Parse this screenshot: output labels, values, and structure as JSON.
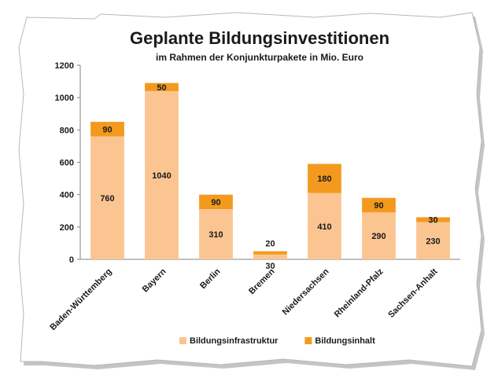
{
  "chart_data": {
    "type": "bar",
    "stacked": true,
    "title": "Geplante Bildungsinvestitionen",
    "subtitle": "im Rahmen der Konjunkturpakete in Mio. Euro",
    "categories": [
      "Baden-Württemberg",
      "Bayern",
      "Berlin",
      "Bremen",
      "Niedersachsen",
      "Rheinland-Pfalz",
      "Sachsen-Anhalt"
    ],
    "series": [
      {
        "name": "Bildungsinfrastruktur",
        "values": [
          760,
          1040,
          310,
          30,
          410,
          290,
          230
        ],
        "color": "#fbc592"
      },
      {
        "name": "Bildungsinhalt",
        "values": [
          90,
          50,
          90,
          20,
          180,
          90,
          30
        ],
        "color": "#f39a1e"
      }
    ],
    "yticks": [
      0,
      200,
      400,
      600,
      800,
      1000,
      1200
    ],
    "ylim": [
      0,
      1200
    ],
    "grid": false,
    "legend": "bottom"
  }
}
